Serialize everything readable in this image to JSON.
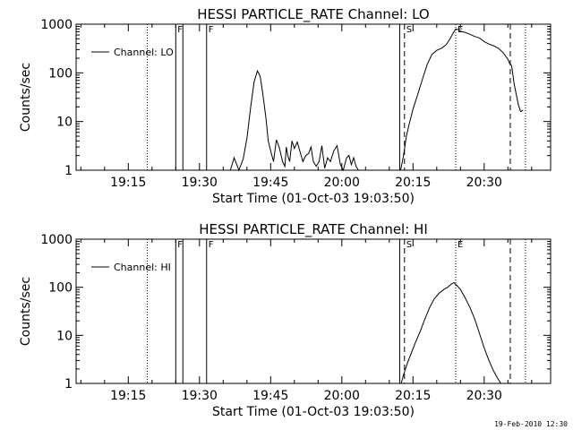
{
  "chart_data": [
    {
      "type": "line",
      "title": "HESSI PARTICLE_RATE Channel: LO",
      "xlabel": "Start Time (01-Oct-03 19:03:50)",
      "ylabel": "Counts/sec",
      "y_scale": "log",
      "ylim": [
        1,
        1000
      ],
      "xlim": [
        "19:04",
        "20:44"
      ],
      "x_ticks": [
        "19:15",
        "19:30",
        "19:45",
        "20:00",
        "20:15",
        "20:30"
      ],
      "y_ticks": [
        "1",
        "10",
        "100",
        "1000"
      ],
      "legend": {
        "label": "Channel: LO",
        "position": "top-left"
      },
      "grid": false,
      "markers": [
        {
          "time": "19:19",
          "style": "dotted",
          "label": ""
        },
        {
          "time": "19:25",
          "style": "solid",
          "label": "F"
        },
        {
          "time": "19:26.5",
          "style": "solid",
          "label": ""
        },
        {
          "time": "19:31.5",
          "style": "solid",
          "label": "F"
        },
        {
          "time": "20:12.2",
          "style": "solid",
          "label": ""
        },
        {
          "time": "20:13.2",
          "style": "dashed",
          "label": "S"
        },
        {
          "time": "20:24",
          "style": "dotted",
          "label": "E"
        },
        {
          "time": "20:35.5",
          "style": "dashed",
          "label": ""
        },
        {
          "time": "20:38.7",
          "style": "dotted",
          "label": ""
        }
      ],
      "series": [
        {
          "x": [
            "19:36.5",
            "19:37.3",
            "19:38.3",
            "19:39.2",
            "19:40.0",
            "19:40.8",
            "19:41.5",
            "19:42.2",
            "19:42.8",
            "19:43.3",
            "19:44.0",
            "19:44.5",
            "19:45.0",
            "19:45.6",
            "19:46.2",
            "19:46.8",
            "19:47.5",
            "19:48.0",
            "19:48.3",
            "19:48.6",
            "19:49.0",
            "19:49.5",
            "19:50.0",
            "19:50.6",
            "19:51.3",
            "19:51.8",
            "19:52.4",
            "19:53.0",
            "19:53.5",
            "19:54.0",
            "19:54.6",
            "19:55.2",
            "19:55.8",
            "19:56.4",
            "19:57.0",
            "19:57.6",
            "19:58.3",
            "19:59.0",
            "19:59.7",
            "20:00.3",
            "20:01.0",
            "20:01.5",
            "20:02.0",
            "20:02.5",
            "20:03.0",
            "20:03.5",
            "20:12.4",
            "20:13.0",
            "20:13.6",
            "20:14.2",
            "20:15.0",
            "20:16.0",
            "20:17.0",
            "20:18.0",
            "20:19.0",
            "20:20.0",
            "20:21.0",
            "20:22.0",
            "20:22.8",
            "20:23.4",
            "20:24.0",
            "20:24.6",
            "20:25.2",
            "20:26.0",
            "20:27.0",
            "20:28.0",
            "20:29.0",
            "20:30.0",
            "20:31.0",
            "20:32.0",
            "20:33.0",
            "20:34.0",
            "20:35.0",
            "20:35.3",
            "20:35.8",
            "20:36.3",
            "20:36.8",
            "20:37.2",
            "20:37.7",
            "20:38.2"
          ],
          "values": [
            1,
            1.8,
            1,
            1.7,
            4.5,
            20,
            65,
            110,
            85,
            40,
            12,
            4,
            2.5,
            1.5,
            4.2,
            3,
            1.5,
            1.2,
            3,
            2,
            1.5,
            4,
            2.8,
            3.8,
            2.2,
            1.5,
            2,
            2.2,
            3,
            1.5,
            1.2,
            1.5,
            3.2,
            1.1,
            1.8,
            1.5,
            2.5,
            3.2,
            1.3,
            1,
            1.8,
            2,
            1.3,
            1.8,
            1.2,
            1,
            1,
            2,
            5,
            9,
            18,
            36,
            75,
            150,
            240,
            290,
            320,
            380,
            500,
            640,
            800,
            770,
            700,
            680,
            620,
            560,
            520,
            440,
            390,
            360,
            320,
            260,
            190,
            160,
            140,
            60,
            35,
            22,
            16,
            17
          ]
        }
      ]
    },
    {
      "type": "line",
      "title": "HESSI PARTICLE_RATE Channel: HI",
      "xlabel": "Start Time (01-Oct-03 19:03:50)",
      "ylabel": "Counts/sec",
      "y_scale": "log",
      "ylim": [
        1,
        1000
      ],
      "xlim": [
        "19:04",
        "20:44"
      ],
      "x_ticks": [
        "19:15",
        "19:30",
        "19:45",
        "20:00",
        "20:15",
        "20:30"
      ],
      "y_ticks": [
        "1",
        "10",
        "100",
        "1000"
      ],
      "legend": {
        "label": "Channel: HI",
        "position": "top-left"
      },
      "grid": false,
      "markers": [
        {
          "time": "19:19",
          "style": "dotted",
          "label": ""
        },
        {
          "time": "19:25",
          "style": "solid",
          "label": "F"
        },
        {
          "time": "19:26.5",
          "style": "solid",
          "label": ""
        },
        {
          "time": "19:31.5",
          "style": "solid",
          "label": "F"
        },
        {
          "time": "20:12.2",
          "style": "solid",
          "label": ""
        },
        {
          "time": "20:13.2",
          "style": "dashed",
          "label": "S"
        },
        {
          "time": "20:24",
          "style": "dotted",
          "label": "E"
        },
        {
          "time": "20:35.5",
          "style": "dashed",
          "label": ""
        },
        {
          "time": "20:38.7",
          "style": "dotted",
          "label": ""
        }
      ],
      "series": [
        {
          "x": [
            "20:12.5",
            "20:13.0",
            "20:13.8",
            "20:14.6",
            "20:15.5",
            "20:16.5",
            "20:17.5",
            "20:18.5",
            "20:19.5",
            "20:20.5",
            "20:21.5",
            "20:22.3",
            "20:23.0",
            "20:23.6",
            "20:24.2",
            "20:25.0",
            "20:26.0",
            "20:27.0",
            "20:28.0",
            "20:29.0",
            "20:30.0",
            "20:31.0",
            "20:32.0",
            "20:32.8",
            "20:33.5"
          ],
          "values": [
            1,
            1.5,
            2.6,
            4.2,
            7,
            12,
            22,
            38,
            58,
            75,
            90,
            100,
            115,
            125,
            110,
            90,
            60,
            38,
            22,
            11,
            5.5,
            3,
            1.8,
            1.3,
            1
          ]
        }
      ]
    }
  ],
  "footer": {
    "timestamp": "19-Feb-2010 12:30"
  }
}
